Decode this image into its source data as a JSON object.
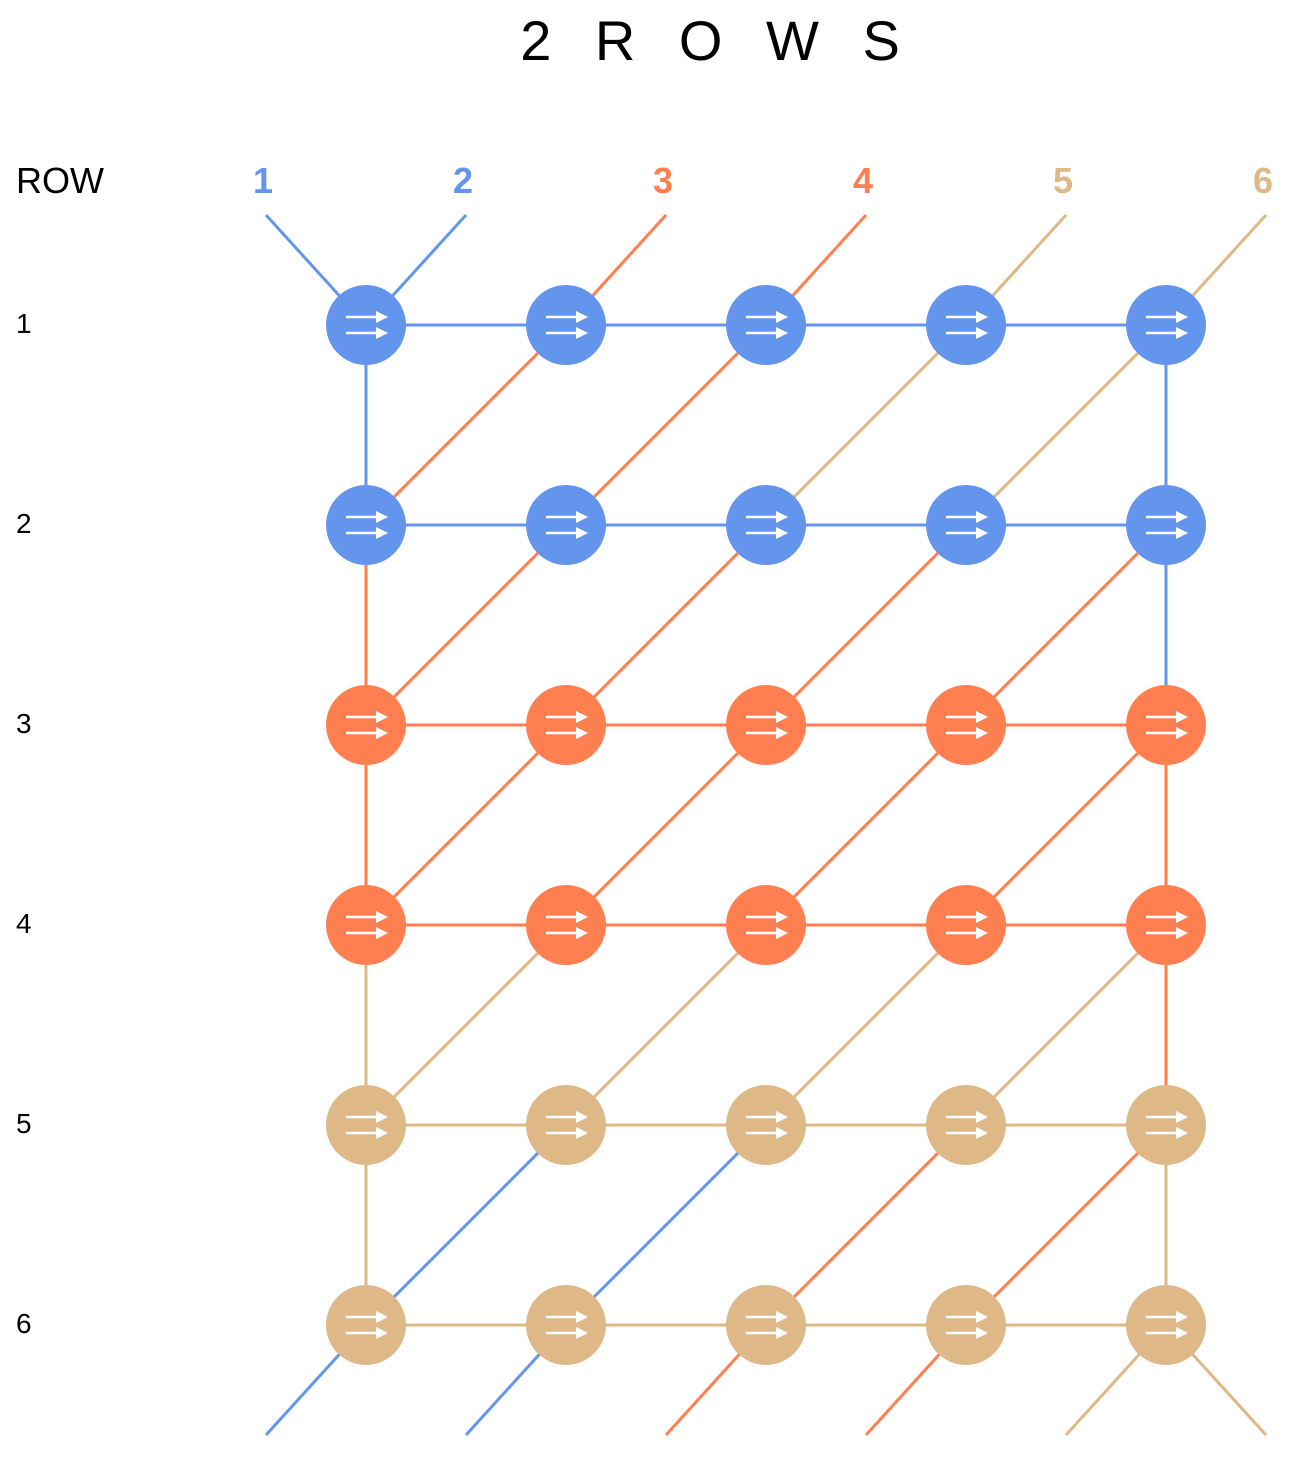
{
  "title": "2 R O W S",
  "row_header": "ROW",
  "row_labels": [
    "1",
    "2",
    "3",
    "4",
    "5",
    "6"
  ],
  "column_labels": [
    "1",
    "2",
    "3",
    "4",
    "5",
    "6"
  ],
  "colors": {
    "blue": "#6495ED",
    "orange": "#FF7F50",
    "tan": "#DEB887",
    "arrow": "#ffffff"
  },
  "row_group_colors": [
    "blue",
    "blue",
    "orange",
    "orange",
    "tan",
    "tan"
  ],
  "column_label_colors": [
    "blue",
    "blue",
    "orange",
    "orange",
    "tan",
    "tan"
  ],
  "node_icon": "double-right-arrow-icon",
  "grid": {
    "rows": 6,
    "cols": 5
  }
}
